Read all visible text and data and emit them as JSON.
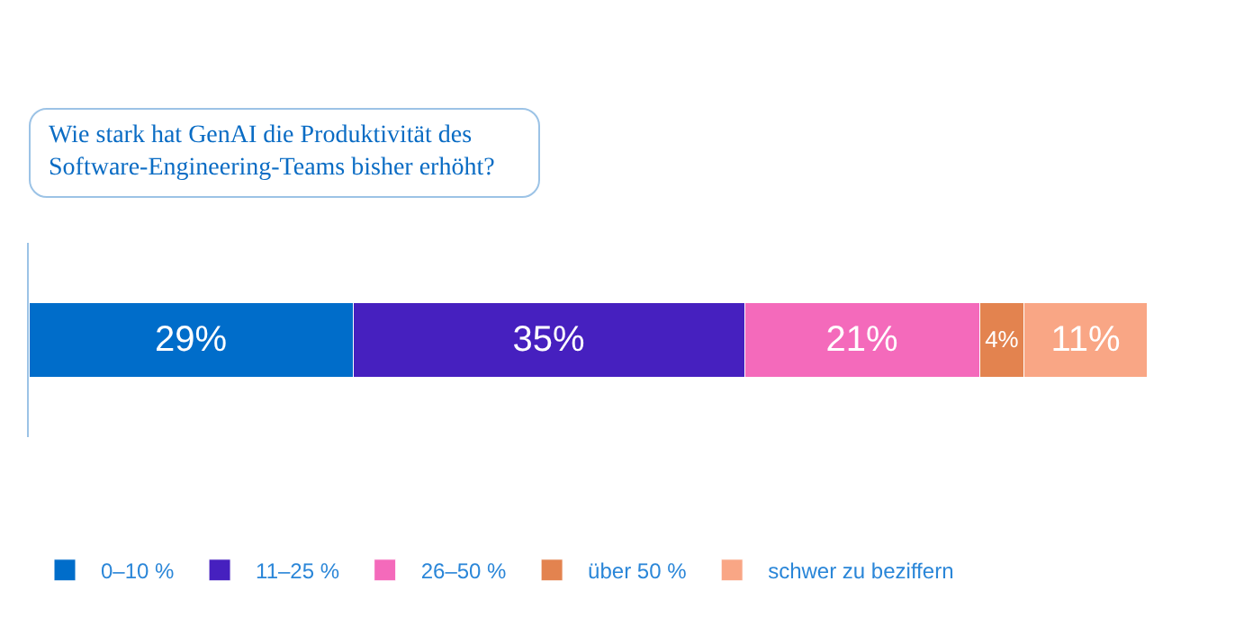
{
  "chart_data": {
    "type": "bar",
    "orientation": "horizontal",
    "stacked": true,
    "title": "Wie stark hat GenAI die Produktivität des Software-Engineering-Teams bisher erhöht?",
    "categories": [
      null
    ],
    "series": [
      {
        "name": "0–10 %",
        "color": "#006dca",
        "values": [
          29
        ],
        "value_labels": [
          "29%"
        ]
      },
      {
        "name": "11–25 %",
        "color": "#4620bf",
        "values": [
          35
        ],
        "value_labels": [
          "35%"
        ]
      },
      {
        "name": "26–50 %",
        "color": "#f46abb",
        "values": [
          21
        ],
        "value_labels": [
          "21%"
        ]
      },
      {
        "name": "über 50 %",
        "color": "#e3834f",
        "values": [
          4
        ],
        "value_labels": [
          "4%"
        ]
      },
      {
        "name": "schwer zu beziffern",
        "color": "#f9a685",
        "values": [
          11
        ],
        "value_labels": [
          "11%"
        ]
      }
    ],
    "legend": "bottom left"
  }
}
